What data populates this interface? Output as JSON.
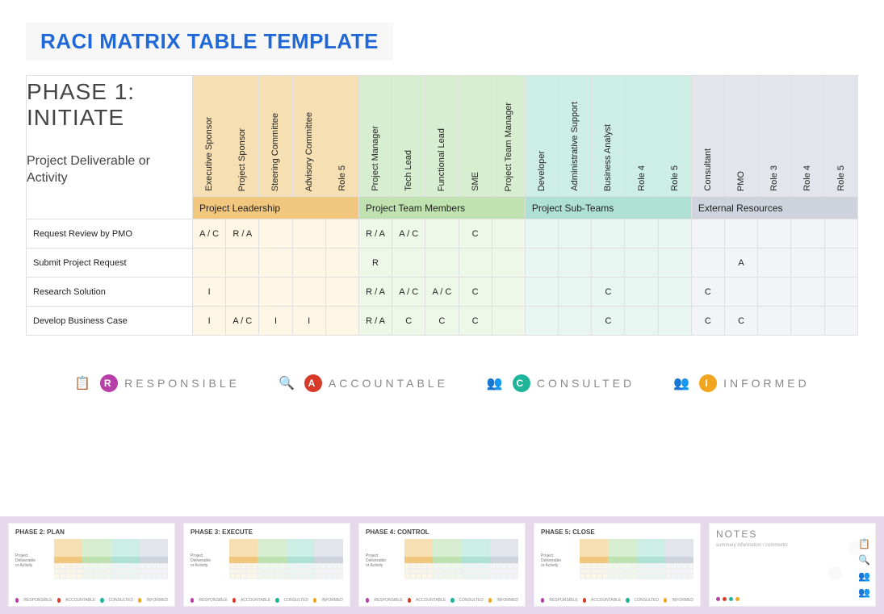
{
  "title": "RACI MATRIX TABLE TEMPLATE",
  "phase": {
    "label": "PHASE 1:",
    "name": "INITIATE"
  },
  "row_header": "Project Deliverable or Activity",
  "title_color": "#2068d8",
  "groups": [
    {
      "label": "Project Leadership",
      "head_bg": "#f6dfb3",
      "cell_bg": "#fdf6e4",
      "group_bg": "#f0c77c",
      "roles": [
        "Executive Sponsor",
        "Project Sponsor",
        "Steering Committee",
        "Advisory Committee",
        "Role 5"
      ]
    },
    {
      "label": "Project Team Members",
      "head_bg": "#d7efd0",
      "cell_bg": "#eef8e9",
      "group_bg": "#bfe2b0",
      "roles": [
        "Project Manager",
        "Tech Lead",
        "Functional Lead",
        "SME",
        "Project Team Manager"
      ]
    },
    {
      "label": "Project Sub-Teams",
      "head_bg": "#cdeee5",
      "cell_bg": "#e8f6f2",
      "group_bg": "#aee0d3",
      "roles": [
        "Developer",
        "Administrative Support",
        "Business Analyst",
        "Role 4",
        "Role 5"
      ]
    },
    {
      "label": "External Resources",
      "head_bg": "#e3e5ec",
      "cell_bg": "#f3f4f7",
      "group_bg": "#cfd3de",
      "roles": [
        "Consultant",
        "PMO",
        "Role 3",
        "Role 4",
        "Role 5"
      ]
    }
  ],
  "activities": [
    {
      "name": "Request Review by PMO",
      "values": [
        "A / C",
        "R / A",
        "",
        "",
        "",
        "R / A",
        "A / C",
        "",
        "C",
        "",
        "",
        "",
        "",
        "",
        "",
        "",
        "",
        "",
        "",
        ""
      ]
    },
    {
      "name": "Submit Project Request",
      "values": [
        "",
        "",
        "",
        "",
        "",
        "R",
        "",
        "",
        "",
        "",
        "",
        "",
        "",
        "",
        "",
        "",
        "A",
        "",
        "",
        ""
      ]
    },
    {
      "name": "Research Solution",
      "values": [
        "I",
        "",
        "",
        "",
        "",
        "R / A",
        "A / C",
        "A / C",
        "C",
        "",
        "",
        "",
        "C",
        "",
        "",
        "C",
        "",
        "",
        "",
        ""
      ]
    },
    {
      "name": "Develop Business Case",
      "values": [
        "I",
        "A / C",
        "I",
        "I",
        "",
        "R / A",
        "C",
        "C",
        "C",
        "",
        "",
        "",
        "C",
        "",
        "",
        "C",
        "C",
        "",
        "",
        ""
      ]
    }
  ],
  "legend": [
    {
      "letter": "R",
      "label": "RESPONSIBLE",
      "color": "#b83fa8"
    },
    {
      "letter": "A",
      "label": "ACCOUNTABLE",
      "color": "#d83a2a"
    },
    {
      "letter": "C",
      "label": "CONSULTED",
      "color": "#1fb59a"
    },
    {
      "letter": "I",
      "label": "INFORMED",
      "color": "#f2a51e"
    }
  ],
  "thumbnails": [
    {
      "title": "PHASE 2: PLAN"
    },
    {
      "title": "PHASE 3: EXECUTE"
    },
    {
      "title": "PHASE 4: CONTROL"
    },
    {
      "title": "PHASE 5: CLOSE"
    }
  ],
  "notes": {
    "title": "NOTES",
    "sub": "summary information / comments"
  }
}
